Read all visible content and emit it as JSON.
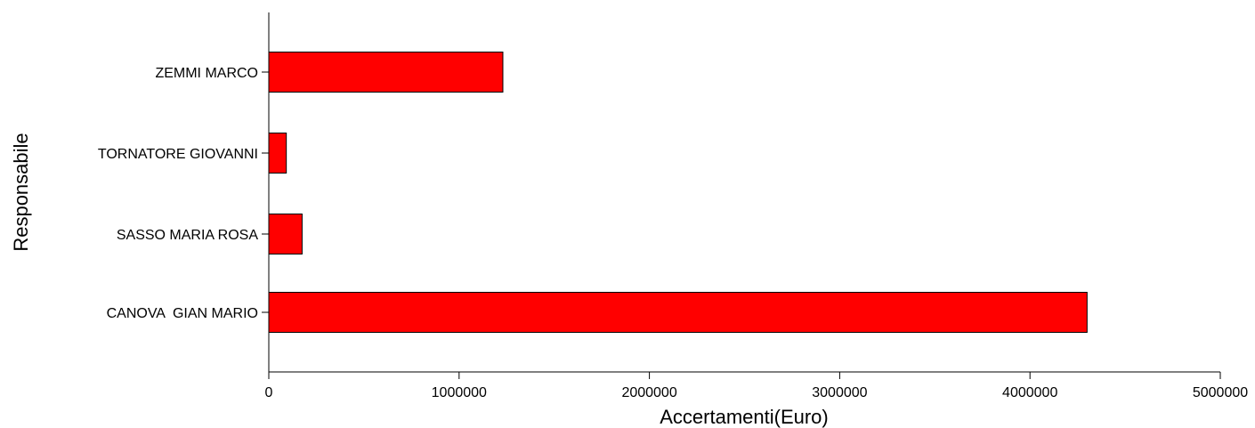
{
  "chart_data": {
    "type": "bar",
    "orientation": "horizontal",
    "title": "",
    "xlabel": "Accertamenti(Euro)",
    "ylabel": "Responsabile",
    "categories": [
      "CANOVA  GIAN MARIO",
      "SASSO MARIA ROSA",
      "TORNATORE GIOVANNI",
      "ZEMMI MARCO"
    ],
    "values": [
      4300000,
      175000,
      92000,
      1230000
    ],
    "xlim": [
      0,
      5000000
    ],
    "xticks": [
      "0",
      "1000000",
      "2000000",
      "3000000",
      "4000000",
      "5000000"
    ],
    "grid": false,
    "legend": "none",
    "bar_color": "#ff0000",
    "bar_edge_color": "#000000"
  }
}
